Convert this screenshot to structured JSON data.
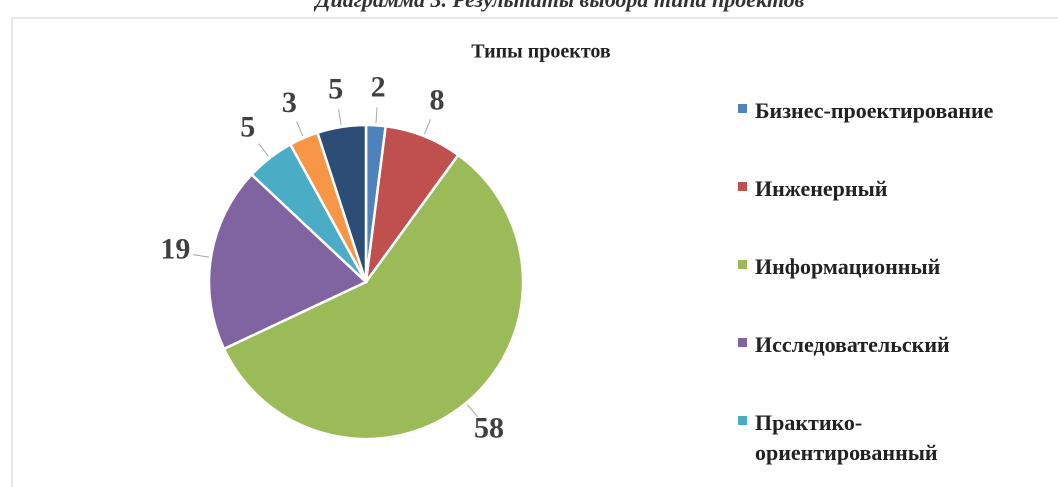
{
  "caption": "Диаграмма 3. Результаты выбора типа проектов",
  "chart_data": {
    "type": "pie",
    "title": "Типы проектов",
    "categories": [
      "Бизнес-проектирование",
      "Инженерный",
      "Информационный",
      "Исследовательский",
      "Практико-ориентированный",
      null,
      null
    ],
    "values": [
      2,
      8,
      58,
      19,
      5,
      3,
      5
    ],
    "colors": [
      "#4f81bd",
      "#c0504d",
      "#9bbb59",
      "#8064a2",
      "#4bacc6",
      "#f79646",
      "#2c4d75"
    ],
    "legend": "right"
  }
}
